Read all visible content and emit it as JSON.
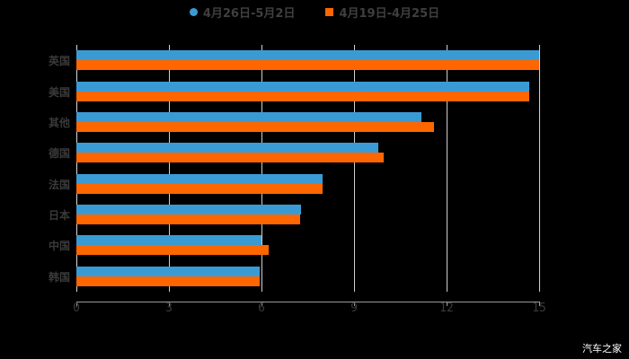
{
  "chart_data": {
    "type": "bar",
    "orientation": "horizontal",
    "title": "",
    "xlabel": "",
    "ylabel": "",
    "categories": [
      "英国",
      "美国",
      "其他",
      "德国",
      "法国",
      "日本",
      "中国",
      "韩国"
    ],
    "series": [
      {
        "name": "4月26日-5月2日",
        "color": "#3a9bd4",
        "values": [
          15.0,
          14.68,
          11.19,
          9.8,
          7.98,
          7.28,
          6.0,
          5.94
        ]
      },
      {
        "name": "4月19日-4月25日",
        "color": "#ff6600",
        "values": [
          15.0,
          14.68,
          11.6,
          9.96,
          7.98,
          7.25,
          6.23,
          5.94
        ]
      }
    ],
    "xlim": [
      0,
      15
    ],
    "xticks": [
      "0",
      "3",
      "6",
      "9",
      "12",
      "15"
    ],
    "grid": true,
    "legend_position": "top"
  },
  "legend": {
    "items": [
      {
        "label": "4月26日-5月2日",
        "color": "#3a9bd4",
        "marker": "circle"
      },
      {
        "label": "4月19日-4月25日",
        "color": "#ff6600",
        "marker": "square"
      }
    ]
  },
  "watermark": "汽车之家"
}
